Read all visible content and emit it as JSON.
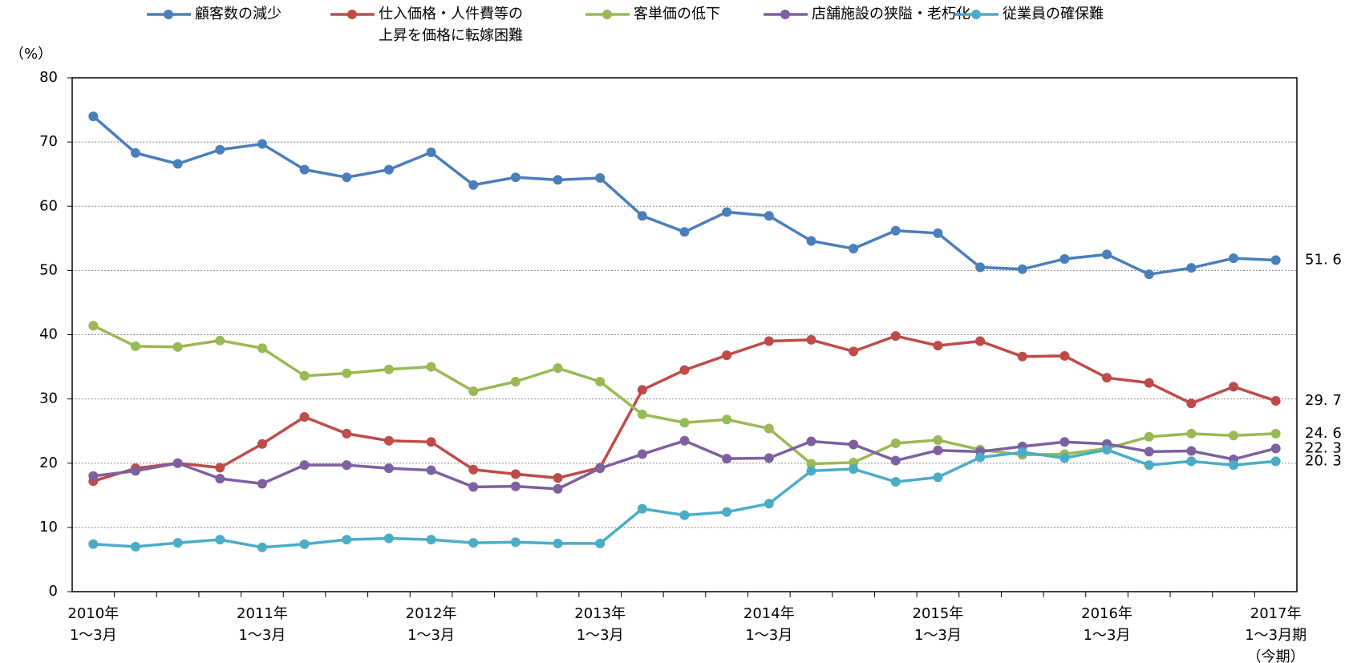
{
  "chart_data": {
    "type": "line",
    "y_label": "（%）",
    "categories": [
      "2010年\n1～3月",
      null,
      null,
      null,
      "2011年\n1～3月",
      null,
      null,
      null,
      "2012年\n1～3月",
      null,
      null,
      null,
      "2013年\n1～3月",
      null,
      null,
      null,
      "2014年\n1～3月",
      null,
      null,
      null,
      "2015年\n1～3月",
      null,
      null,
      null,
      "2016年\n1～3月",
      null,
      null,
      null,
      "2017年\n1～3月期\n（今期）"
    ],
    "ylim": [
      0,
      80
    ],
    "yticks": [
      0,
      10,
      20,
      30,
      40,
      50,
      60,
      70,
      80
    ],
    "grid": true,
    "series": [
      {
        "name": "顧客数の減少",
        "color": "#4a7ebb",
        "values": [
          74.0,
          68.3,
          66.6,
          68.8,
          69.7,
          65.7,
          64.5,
          65.7,
          68.4,
          63.3,
          64.5,
          64.1,
          64.4,
          58.5,
          56.0,
          59.1,
          58.5,
          54.6,
          53.4,
          56.2,
          55.8,
          50.5,
          50.2,
          51.8,
          52.5,
          49.4,
          50.4,
          51.9,
          51.6
        ],
        "value_labels": [
          null,
          null,
          null,
          null,
          null,
          null,
          null,
          null,
          null,
          null,
          null,
          null,
          null,
          null,
          null,
          null,
          null,
          null,
          null,
          null,
          null,
          null,
          null,
          null,
          null,
          null,
          null,
          null,
          "51. 6"
        ]
      },
      {
        "name": "仕入価格・人件費等の\n上昇を価格に転嫁困難",
        "color": "#be4b48",
        "values": [
          17.2,
          19.2,
          20.0,
          19.3,
          23.0,
          27.2,
          24.6,
          23.5,
          23.3,
          19.0,
          18.3,
          17.7,
          19.3,
          31.4,
          34.5,
          36.8,
          39.0,
          39.2,
          37.4,
          39.8,
          38.3,
          39.0,
          36.6,
          36.7,
          33.3,
          32.5,
          29.3,
          31.9,
          29.7
        ],
        "value_labels": [
          null,
          null,
          null,
          null,
          null,
          null,
          null,
          null,
          null,
          null,
          null,
          null,
          null,
          null,
          null,
          null,
          null,
          null,
          null,
          null,
          null,
          null,
          null,
          null,
          null,
          null,
          null,
          null,
          "29. 7"
        ]
      },
      {
        "name": "客単価の低下",
        "color": "#98b954",
        "values": [
          41.4,
          38.2,
          38.1,
          39.1,
          37.9,
          33.6,
          34.0,
          34.6,
          35.0,
          31.2,
          32.7,
          34.8,
          32.7,
          27.6,
          26.3,
          26.8,
          25.4,
          19.9,
          20.1,
          23.1,
          23.6,
          22.1,
          21.3,
          21.4,
          22.3,
          24.1,
          24.6,
          24.3,
          24.6
        ],
        "value_labels": [
          null,
          null,
          null,
          null,
          null,
          null,
          null,
          null,
          null,
          null,
          null,
          null,
          null,
          null,
          null,
          null,
          null,
          null,
          null,
          null,
          null,
          null,
          null,
          null,
          null,
          null,
          null,
          null,
          "24. 6"
        ]
      },
      {
        "name": "店舗施設の狭隘・老朽化",
        "color": "#7d60a0",
        "values": [
          18.0,
          18.8,
          20.0,
          17.6,
          16.8,
          19.7,
          19.7,
          19.2,
          18.9,
          16.3,
          16.4,
          16.0,
          19.2,
          21.4,
          23.5,
          20.7,
          20.8,
          23.4,
          22.9,
          20.4,
          22.0,
          21.8,
          22.6,
          23.3,
          23.0,
          21.8,
          21.9,
          20.6,
          22.3
        ],
        "value_labels": [
          null,
          null,
          null,
          null,
          null,
          null,
          null,
          null,
          null,
          null,
          null,
          null,
          null,
          null,
          null,
          null,
          null,
          null,
          null,
          null,
          null,
          null,
          null,
          null,
          null,
          null,
          null,
          null,
          "22. 3"
        ]
      },
      {
        "name": "従業員の確保難",
        "color": "#4bacc6",
        "values": [
          7.4,
          7.0,
          7.6,
          8.1,
          6.9,
          7.4,
          8.1,
          8.3,
          8.1,
          7.6,
          7.7,
          7.5,
          7.5,
          12.9,
          11.9,
          12.4,
          13.7,
          18.8,
          19.1,
          17.1,
          17.8,
          20.9,
          21.7,
          20.8,
          22.1,
          19.7,
          20.3,
          19.7,
          20.3
        ],
        "value_labels": [
          null,
          null,
          null,
          null,
          null,
          null,
          null,
          null,
          null,
          null,
          null,
          null,
          null,
          null,
          null,
          null,
          null,
          null,
          null,
          null,
          null,
          null,
          null,
          null,
          null,
          null,
          null,
          null,
          "20. 3"
        ]
      }
    ]
  }
}
